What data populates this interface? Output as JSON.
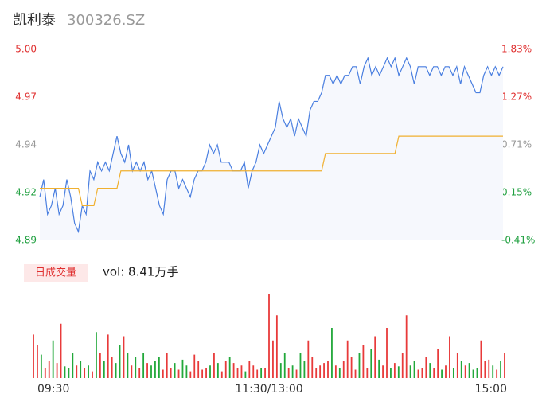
{
  "header": {
    "title": "凯利泰",
    "subtitle": "300326.SZ"
  },
  "chart_data": [
    {
      "type": "line",
      "ylim": [
        4.89,
        5.0
      ],
      "yticks": [
        {
          "value": 5.0,
          "label": "5.00"
        },
        {
          "value": 4.9725,
          "label": "4.97"
        },
        {
          "value": 4.945,
          "label": "4.94"
        },
        {
          "value": 4.9175,
          "label": "4.92"
        },
        {
          "value": 4.89,
          "label": "4.89"
        }
      ],
      "y2lim": [
        -0.41,
        1.83
      ],
      "y2ticks": [
        {
          "value": 1.83,
          "label": "1.83%"
        },
        {
          "value": 1.27,
          "label": "1.27%"
        },
        {
          "value": 0.71,
          "label": "0.71%"
        },
        {
          "value": 0.15,
          "label": "0.15%"
        },
        {
          "value": -0.41,
          "label": "-0.41%"
        }
      ],
      "tick_colors": [
        "#e03030",
        "#e03030",
        "#999999",
        "#20a040",
        "#20a040"
      ],
      "area_color": "#f6f8fd",
      "series": [
        {
          "color": "#4a7fe0",
          "values": [
            4.915,
            4.925,
            4.905,
            4.91,
            4.92,
            4.905,
            4.91,
            4.925,
            4.915,
            4.9,
            4.895,
            4.91,
            4.905,
            4.93,
            4.925,
            4.935,
            4.93,
            4.935,
            4.93,
            4.94,
            4.95,
            4.94,
            4.935,
            4.945,
            4.93,
            4.935,
            4.93,
            4.935,
            4.925,
            4.93,
            4.92,
            4.91,
            4.905,
            4.925,
            4.93,
            4.93,
            4.92,
            4.925,
            4.92,
            4.915,
            4.925,
            4.93,
            4.93,
            4.935,
            4.945,
            4.94,
            4.945,
            4.935,
            4.935,
            4.935,
            4.93,
            4.93,
            4.93,
            4.935,
            4.92,
            4.93,
            4.935,
            4.945,
            4.94,
            4.945,
            4.95,
            4.955,
            4.97,
            4.96,
            4.955,
            4.96,
            4.95,
            4.96,
            4.955,
            4.95,
            4.965,
            4.97,
            4.97,
            4.975,
            4.985,
            4.985,
            4.98,
            4.985,
            4.98,
            4.985,
            4.985,
            4.99,
            4.99,
            4.98,
            4.99,
            4.995,
            4.985,
            4.99,
            4.985,
            4.99,
            4.995,
            4.99,
            4.995,
            4.985,
            4.99,
            4.995,
            4.99,
            4.98,
            4.99,
            4.99,
            4.99,
            4.985,
            4.99,
            4.99,
            4.985,
            4.99,
            4.99,
            4.985,
            4.99,
            4.98,
            4.99,
            4.985,
            4.98,
            4.975,
            4.975,
            4.985,
            4.99,
            4.985,
            4.99,
            4.985,
            4.99
          ]
        },
        {
          "color": "#f0b030",
          "values": [
            4.92,
            4.92,
            4.92,
            4.92,
            4.92,
            4.92,
            4.92,
            4.92,
            4.92,
            4.92,
            4.92,
            4.91,
            4.91,
            4.91,
            4.91,
            4.92,
            4.92,
            4.92,
            4.92,
            4.92,
            4.92,
            4.93,
            4.93,
            4.93,
            4.93,
            4.93,
            4.93,
            4.93,
            4.93,
            4.93,
            4.93,
            4.93,
            4.93,
            4.93,
            4.93,
            4.93,
            4.93,
            4.93,
            4.93,
            4.93,
            4.93,
            4.93,
            4.93,
            4.93,
            4.93,
            4.93,
            4.93,
            4.93,
            4.93,
            4.93,
            4.93,
            4.93,
            4.93,
            4.93,
            4.93,
            4.93,
            4.93,
            4.93,
            4.93,
            4.93,
            4.93,
            4.93,
            4.93,
            4.93,
            4.93,
            4.93,
            4.93,
            4.93,
            4.93,
            4.93,
            4.93,
            4.93,
            4.93,
            4.93,
            4.94,
            4.94,
            4.94,
            4.94,
            4.94,
            4.94,
            4.94,
            4.94,
            4.94,
            4.94,
            4.94,
            4.94,
            4.94,
            4.94,
            4.94,
            4.94,
            4.94,
            4.94,
            4.94,
            4.95,
            4.95,
            4.95,
            4.95,
            4.95,
            4.95,
            4.95,
            4.95,
            4.95,
            4.95,
            4.95,
            4.95,
            4.95,
            4.95,
            4.95,
            4.95,
            4.95,
            4.95,
            4.95,
            4.95,
            4.95,
            4.95,
            4.95,
            4.95,
            4.95,
            4.95,
            4.95,
            4.95
          ]
        }
      ],
      "xticks": [
        {
          "value": 0,
          "label": "09:30"
        },
        {
          "value": 60,
          "label": "11:30/13:00"
        },
        {
          "value": 120,
          "label": "15:00"
        }
      ]
    },
    {
      "type": "bar",
      "legend_label": "日成交量",
      "annotation": "vol: 8.41万手",
      "ylim": [
        0,
        100
      ],
      "up_color": "#e83a3a",
      "down_color": "#22a83a",
      "values": [
        52,
        40,
        28,
        12,
        20,
        45,
        18,
        65,
        14,
        12,
        30,
        15,
        20,
        12,
        15,
        8,
        55,
        30,
        20,
        52,
        25,
        18,
        40,
        50,
        30,
        15,
        25,
        12,
        30,
        18,
        15,
        20,
        25,
        10,
        30,
        12,
        18,
        10,
        22,
        15,
        8,
        28,
        20,
        10,
        12,
        15,
        30,
        18,
        8,
        20,
        25,
        18,
        12,
        15,
        8,
        20,
        15,
        10,
        12,
        12,
        100,
        45,
        75,
        18,
        30,
        12,
        15,
        10,
        30,
        20,
        45,
        25,
        12,
        15,
        18,
        20,
        60,
        15,
        12,
        20,
        45,
        25,
        10,
        30,
        40,
        12,
        35,
        50,
        22,
        15,
        60,
        12,
        18,
        14,
        30,
        75,
        15,
        20,
        10,
        12,
        25,
        18,
        12,
        35,
        10,
        15,
        50,
        12,
        30,
        20,
        15,
        18,
        10,
        12,
        45,
        20,
        22,
        15,
        10,
        20,
        30
      ]
    }
  ]
}
